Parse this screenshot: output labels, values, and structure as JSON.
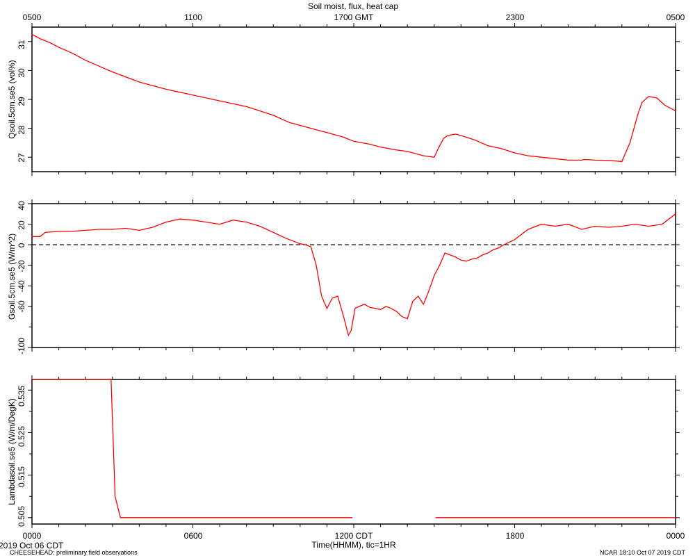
{
  "chart_data": [
    {
      "type": "line",
      "title": "Soil moist, flux, heat cap",
      "ylabel": "Qsoil.5cm.se5 (vol%)",
      "top_xlabels": [
        "0500",
        "1100",
        "1700 GMT",
        "2300",
        "0500"
      ],
      "ylim": [
        26.5,
        31.5
      ],
      "yticks": [
        "27",
        "28",
        "29",
        "30",
        "31"
      ],
      "line_color": "#ff0000",
      "series": [
        {
          "x": [
            0,
            0.3,
            0.7,
            1,
            1.5,
            2,
            2.5,
            3,
            4,
            5,
            6,
            7,
            8,
            9,
            9.6,
            10,
            10.6,
            11,
            11.6,
            12,
            12.6,
            13,
            13.6,
            14,
            14.6,
            15,
            15.15,
            15.35,
            15.5,
            15.8,
            16,
            16.5,
            17,
            17.5,
            18,
            18.5,
            19,
            19.5,
            20,
            20.5,
            20.6,
            21,
            21.6,
            22,
            22.3,
            22.6,
            22.75,
            23,
            23.3,
            23.6,
            24
          ],
          "y": [
            31.25,
            31.1,
            30.95,
            30.8,
            30.6,
            30.35,
            30.15,
            29.95,
            29.6,
            29.35,
            29.15,
            28.95,
            28.75,
            28.45,
            28.2,
            28.1,
            27.95,
            27.85,
            27.7,
            27.55,
            27.45,
            27.35,
            27.25,
            27.2,
            27.05,
            27.0,
            27.3,
            27.65,
            27.75,
            27.8,
            27.75,
            27.6,
            27.4,
            27.3,
            27.15,
            27.05,
            27.0,
            26.95,
            26.9,
            26.9,
            26.92,
            26.9,
            26.88,
            26.85,
            27.5,
            28.5,
            28.9,
            29.1,
            29.05,
            28.8,
            28.6
          ]
        }
      ]
    },
    {
      "type": "line",
      "ylabel": "Gsoil.5cm.se5 (W/m^2)",
      "ylim": [
        -100,
        40
      ],
      "yticks": [
        "40",
        "20",
        "0",
        "-20",
        "-40",
        "-60",
        "-100"
      ],
      "ytick_values": [
        40,
        20,
        0,
        -20,
        -40,
        -60,
        -100
      ],
      "zero_line": true,
      "line_color": "#ff0000",
      "series": [
        {
          "x": [
            0,
            0.3,
            0.5,
            1,
            1.5,
            2,
            2.5,
            3,
            3.5,
            4,
            4.5,
            5,
            5.5,
            6,
            6.5,
            7,
            7.5,
            8,
            8.5,
            9,
            9.5,
            9.8,
            10,
            10.2,
            10.4,
            10.6,
            10.8,
            11,
            11.2,
            11.4,
            11.6,
            11.8,
            11.9,
            12.05,
            12.2,
            12.4,
            12.6,
            12.8,
            13,
            13.2,
            13.4,
            13.6,
            13.8,
            14,
            14.2,
            14.4,
            14.6,
            14.8,
            15,
            15.2,
            15.4,
            15.6,
            15.8,
            16,
            16.2,
            16.4,
            16.6,
            16.8,
            17,
            17.2,
            17.4,
            17.6,
            18,
            18.5,
            19,
            19.5,
            20,
            20.5,
            21,
            21.5,
            22,
            22.5,
            23,
            23.5,
            24
          ],
          "y": [
            8,
            8,
            12,
            13,
            13,
            14,
            15,
            15,
            16,
            14,
            17,
            22,
            25,
            24,
            22,
            20,
            24,
            22,
            18,
            12,
            6,
            3,
            1,
            0,
            -2,
            -20,
            -50,
            -62,
            -52,
            -50,
            -68,
            -88,
            -84,
            -62,
            -60,
            -58,
            -61,
            -62,
            -63,
            -60,
            -62,
            -65,
            -70,
            -72,
            -55,
            -50,
            -58,
            -45,
            -30,
            -20,
            -8,
            -10,
            -12,
            -15,
            -16,
            -14,
            -13,
            -10,
            -8,
            -5,
            -3,
            0,
            5,
            15,
            20,
            18,
            20,
            15,
            18,
            17,
            18,
            20,
            18,
            20,
            30
          ]
        }
      ]
    },
    {
      "type": "line",
      "ylabel": "Lambdasoil.se5 (W/m/DegK)",
      "ylim": [
        0.5035,
        0.5375
      ],
      "yticks": [
        "0.535",
        "0.525",
        "0.515",
        "0.505"
      ],
      "ytick_values": [
        0.535,
        0.525,
        0.515,
        0.505
      ],
      "line_color": "#ff0000",
      "series": [
        {
          "segments": [
            {
              "x": [
                0,
                2.95,
                3.1,
                3.3,
                11.95
              ],
              "y": [
                0.5375,
                0.5375,
                0.51,
                0.505,
                0.505
              ]
            },
            {
              "x": [
                15.05,
                24
              ],
              "y": [
                0.505,
                0.505
              ]
            }
          ]
        }
      ],
      "bottom_xlabels": [
        "0000",
        "0600",
        "1200 CDT",
        "1800",
        "0000"
      ],
      "xlabel": "Time(HHMM), tic=1HR"
    }
  ],
  "footer": {
    "date_left": "2019 Oct 06 CDT",
    "project": "CHEESEHEAD: preliminary field observations",
    "timestamp": "NCAR 18:10 Oct 07 2019 CDT"
  }
}
